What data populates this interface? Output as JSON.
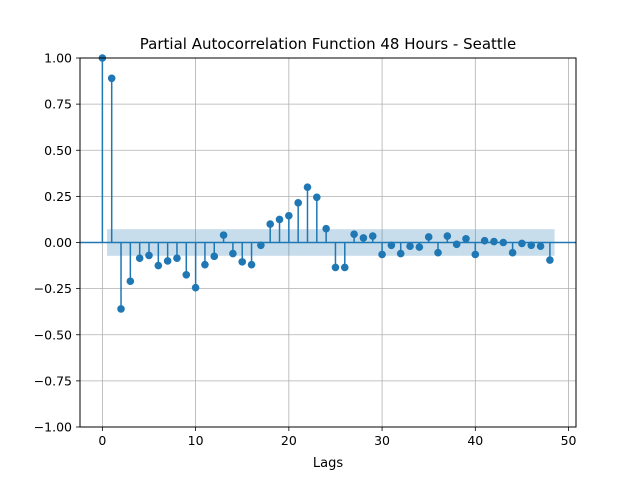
{
  "chart_data": {
    "type": "stem",
    "title": "Partial Autocorrelation Function 48 Hours - Seattle",
    "xlabel": "Lags",
    "ylabel": "",
    "xlim": [
      -2.4,
      50.8
    ],
    "ylim": [
      -1.0,
      1.0
    ],
    "x_ticks": [
      0,
      10,
      20,
      30,
      40,
      50
    ],
    "y_ticks": [
      -1.0,
      -0.75,
      -0.5,
      -0.25,
      0.0,
      0.25,
      0.5,
      0.75,
      1.0
    ],
    "x_tick_labels": [
      "0",
      "10",
      "20",
      "30",
      "40",
      "50"
    ],
    "y_tick_labels": [
      "−1.00",
      "−0.75",
      "−0.50",
      "−0.25",
      "0.00",
      "0.25",
      "0.50",
      "0.75",
      "1.00"
    ],
    "grid": true,
    "confidence_band": {
      "lags": [
        0.5,
        48.5
      ],
      "lower": -0.072,
      "upper": 0.072
    },
    "series": [
      {
        "lags": [
          0,
          1,
          2,
          3,
          4,
          5,
          6,
          7,
          8,
          9,
          10,
          11,
          12,
          13,
          14,
          15,
          16,
          17,
          18,
          19,
          20,
          21,
          22,
          23,
          24,
          25,
          26,
          27,
          28,
          29,
          30,
          31,
          32,
          33,
          34,
          35,
          36,
          37,
          38,
          39,
          40,
          41,
          42,
          43,
          44,
          45,
          46,
          47,
          48
        ],
        "values": [
          1.0,
          0.89,
          -0.36,
          -0.21,
          -0.085,
          -0.07,
          -0.125,
          -0.1,
          -0.085,
          -0.175,
          -0.245,
          -0.12,
          -0.075,
          0.04,
          -0.06,
          -0.105,
          -0.12,
          -0.015,
          0.1,
          0.125,
          0.145,
          0.215,
          0.3,
          0.245,
          0.075,
          -0.135,
          -0.135,
          0.045,
          0.025,
          0.035,
          -0.065,
          -0.015,
          -0.06,
          -0.02,
          -0.025,
          0.03,
          -0.055,
          0.035,
          -0.01,
          0.02,
          -0.065,
          0.01,
          0.005,
          0.0,
          -0.055,
          -0.005,
          -0.015,
          -0.02,
          -0.095
        ]
      }
    ],
    "colors": {
      "stem": "#1f77b4",
      "band": "#1f77b4",
      "grid": "#b0b0b0"
    }
  }
}
